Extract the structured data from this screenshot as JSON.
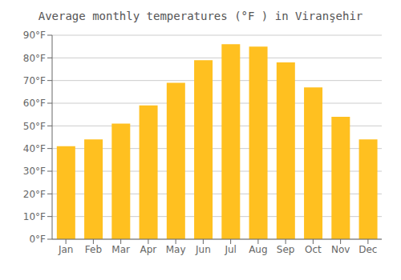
{
  "chart_data": {
    "type": "bar",
    "title": "Average monthly temperatures (°F ) in Viranşehir",
    "categories": [
      "Jan",
      "Feb",
      "Mar",
      "Apr",
      "May",
      "Jun",
      "Jul",
      "Aug",
      "Sep",
      "Oct",
      "Nov",
      "Dec"
    ],
    "values": [
      41,
      44,
      51,
      59,
      69,
      79,
      86,
      85,
      78,
      67,
      54,
      44
    ],
    "color": "#FFC020",
    "ylim": [
      0,
      90
    ],
    "yticks": [
      {
        "value": 0,
        "label": "0°F"
      },
      {
        "value": 10,
        "label": "10°F"
      },
      {
        "value": 20,
        "label": "20°F"
      },
      {
        "value": 30,
        "label": "30°F"
      },
      {
        "value": 40,
        "label": "40°F"
      },
      {
        "value": 50,
        "label": "50°F"
      },
      {
        "value": 60,
        "label": "60°F"
      },
      {
        "value": 70,
        "label": "70°F"
      },
      {
        "value": 80,
        "label": "80°F"
      },
      {
        "value": 90,
        "label": "90°F"
      }
    ],
    "grid": true
  }
}
